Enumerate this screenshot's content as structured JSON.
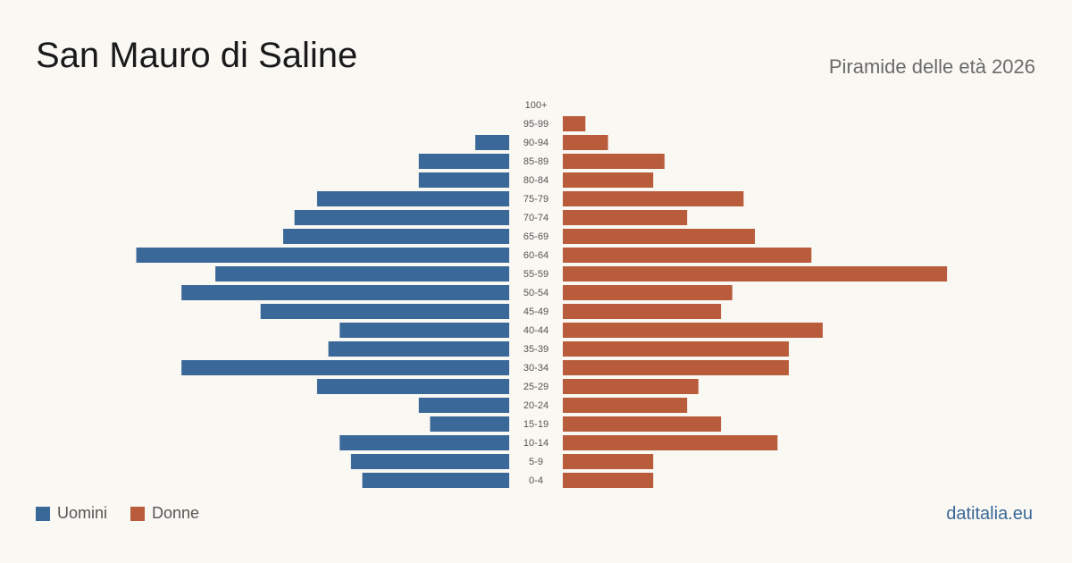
{
  "header": {
    "title": "San Mauro di Saline",
    "subtitle": "Piramide delle età 2026"
  },
  "footer": {
    "site": "datitalia.eu"
  },
  "colors": {
    "male": "#3a6898",
    "female": "#b85c3c"
  },
  "chart_data": {
    "type": "bar",
    "orientation": "horizontal-pyramid",
    "categories": [
      "100+",
      "95-99",
      "90-94",
      "85-89",
      "80-84",
      "75-79",
      "70-74",
      "65-69",
      "60-64",
      "55-59",
      "50-54",
      "45-49",
      "40-44",
      "35-39",
      "30-34",
      "25-29",
      "20-24",
      "15-19",
      "10-14",
      "5-9",
      "0-4"
    ],
    "series": [
      {
        "name": "Uomini",
        "values": [
          0,
          0,
          3,
          8,
          8,
          17,
          19,
          20,
          33,
          26,
          29,
          22,
          15,
          16,
          29,
          17,
          8,
          7,
          15,
          14,
          13
        ]
      },
      {
        "name": "Donne",
        "values": [
          0,
          2,
          4,
          9,
          8,
          16,
          11,
          17,
          22,
          34,
          15,
          14,
          23,
          20,
          20,
          12,
          11,
          14,
          19,
          8,
          8
        ]
      }
    ],
    "legend": "bottom-left",
    "grid": false
  }
}
